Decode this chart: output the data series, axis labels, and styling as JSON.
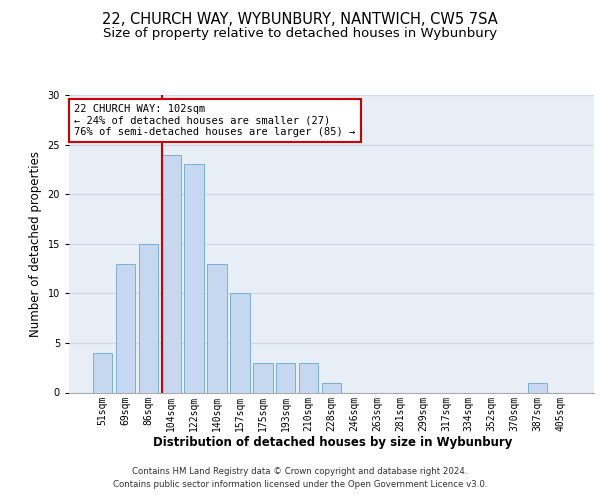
{
  "title1": "22, CHURCH WAY, WYBUNBURY, NANTWICH, CW5 7SA",
  "title2": "Size of property relative to detached houses in Wybunbury",
  "xlabel": "Distribution of detached houses by size in Wybunbury",
  "ylabel": "Number of detached properties",
  "categories": [
    "51sqm",
    "69sqm",
    "86sqm",
    "104sqm",
    "122sqm",
    "140sqm",
    "157sqm",
    "175sqm",
    "193sqm",
    "210sqm",
    "228sqm",
    "246sqm",
    "263sqm",
    "281sqm",
    "299sqm",
    "317sqm",
    "334sqm",
    "352sqm",
    "370sqm",
    "387sqm",
    "405sqm"
  ],
  "values": [
    4,
    13,
    15,
    24,
    23,
    13,
    10,
    3,
    3,
    3,
    1,
    0,
    0,
    0,
    0,
    0,
    0,
    0,
    0,
    1,
    0
  ],
  "bar_color": "#c5d8ef",
  "bar_edge_color": "#7aafd4",
  "highlight_line_color": "#cc0000",
  "annotation_text": "22 CHURCH WAY: 102sqm\n← 24% of detached houses are smaller (27)\n76% of semi-detached houses are larger (85) →",
  "annotation_box_color": "#ffffff",
  "annotation_box_edge": "#cc0000",
  "footer1": "Contains HM Land Registry data © Crown copyright and database right 2024.",
  "footer2": "Contains public sector information licensed under the Open Government Licence v3.0.",
  "ylim": [
    0,
    30
  ],
  "yticks": [
    0,
    5,
    10,
    15,
    20,
    25,
    30
  ],
  "grid_color": "#d0d8e8",
  "bg_color": "#e8eef6",
  "title1_fontsize": 10.5,
  "title2_fontsize": 9.5,
  "tick_fontsize": 7,
  "ylabel_fontsize": 8.5,
  "xlabel_fontsize": 8.5,
  "annotation_fontsize": 7.5,
  "footer_fontsize": 6.2
}
